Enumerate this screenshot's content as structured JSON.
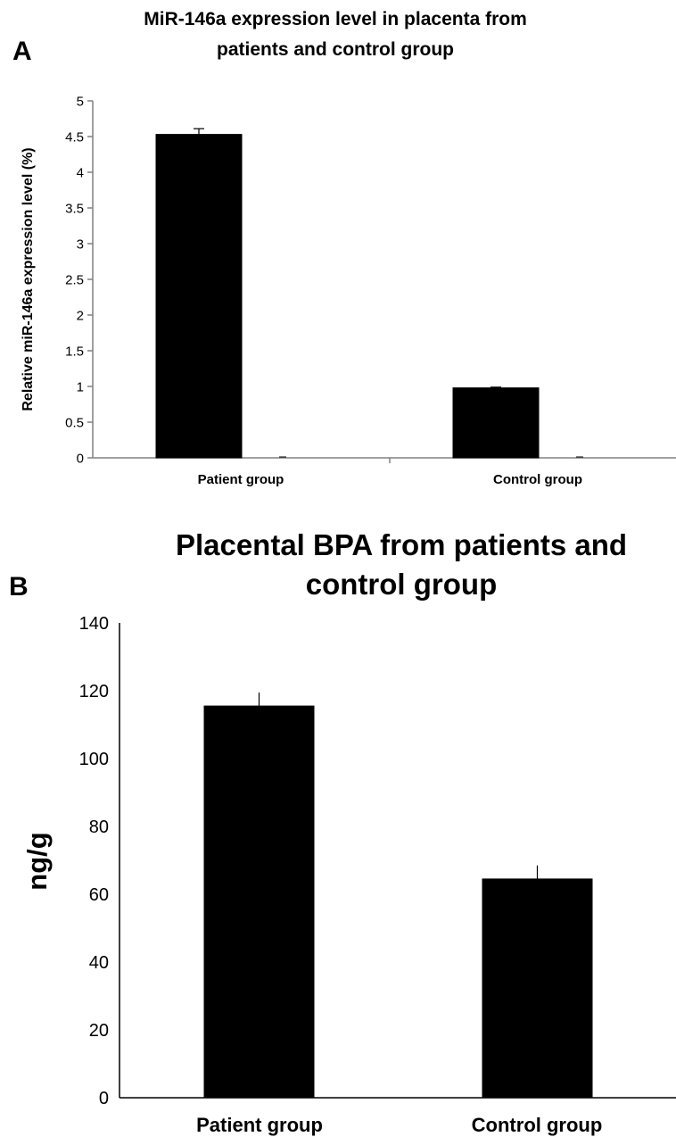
{
  "chart_data": [
    {
      "type": "bar",
      "panel": "A",
      "title_lines": [
        "MiR-146a expression level in placenta from",
        "patients and control group"
      ],
      "ylabel": "Relative miR-146a expression level (%)",
      "xlabel": "",
      "categories": [
        "Patient group",
        "Control group"
      ],
      "values": [
        4.53,
        0.98
      ],
      "errors": [
        0.08,
        0.01
      ],
      "ylim": [
        0,
        5
      ],
      "yticks": [
        "0",
        "0.5",
        "1",
        "1.5",
        "2",
        "2.5",
        "3",
        "3.5",
        "4",
        "4.5",
        "5"
      ],
      "grid": false,
      "colors": {
        "bar": "#000000",
        "axis": "#808080"
      }
    },
    {
      "type": "bar",
      "panel": "B",
      "title_lines": [
        "Placental BPA from patients and",
        "control group"
      ],
      "ylabel": "ng/g",
      "xlabel": "",
      "categories": [
        "Patient group",
        "Control group"
      ],
      "values": [
        115.5,
        64.5
      ],
      "errors": [
        4,
        4
      ],
      "ylim": [
        0,
        140
      ],
      "yticks": [
        "0",
        "20",
        "40",
        "60",
        "80",
        "100",
        "120",
        "140"
      ],
      "grid": false,
      "colors": {
        "bar": "#000000",
        "axis": "#000000"
      }
    }
  ]
}
